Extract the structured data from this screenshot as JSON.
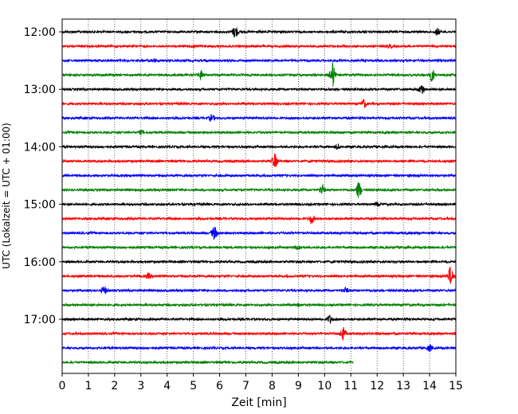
{
  "chart_data": {
    "type": "line",
    "title": "",
    "xlabel": "Zeit  [min]",
    "ylabel": "UTC (Lokalzeit = UTC + 01:00)",
    "xlim": [
      0,
      15
    ],
    "x_ticks": [
      "0",
      "1",
      "2",
      "3",
      "4",
      "5",
      "6",
      "7",
      "8",
      "9",
      "10",
      "11",
      "12",
      "13",
      "14",
      "15"
    ],
    "y_tick_labels": [
      "12:00",
      "13:00",
      "14:00",
      "15:00",
      "16:00",
      "17:00"
    ],
    "grid": "vertical dotted lines at each minute",
    "legend": "none",
    "trace_interval_minutes": 15,
    "colors": [
      "#000000",
      "#ff0000",
      "#0000ff",
      "#008000"
    ],
    "traces": [
      {
        "start": "12:00",
        "color": "#000000",
        "end_min": 15,
        "events": [
          {
            "t": 6.6,
            "amp": 8
          },
          {
            "t": 14.3,
            "amp": 4
          }
        ]
      },
      {
        "start": "12:15",
        "color": "#ff0000",
        "end_min": 15,
        "events": [
          {
            "t": 5.0,
            "amp": 2
          },
          {
            "t": 12.5,
            "amp": 2
          }
        ]
      },
      {
        "start": "12:30",
        "color": "#0000ff",
        "end_min": 15,
        "events": [
          {
            "t": 3.5,
            "amp": 2
          }
        ]
      },
      {
        "start": "12:45",
        "color": "#008000",
        "end_min": 15,
        "events": [
          {
            "t": 5.3,
            "amp": 6
          },
          {
            "t": 10.3,
            "amp": 16
          },
          {
            "t": 14.1,
            "amp": 8
          }
        ]
      },
      {
        "start": "13:00",
        "color": "#000000",
        "end_min": 15,
        "events": [
          {
            "t": 13.7,
            "amp": 6
          }
        ]
      },
      {
        "start": "13:15",
        "color": "#ff0000",
        "end_min": 15,
        "events": [
          {
            "t": 11.5,
            "amp": 5
          }
        ]
      },
      {
        "start": "13:30",
        "color": "#0000ff",
        "end_min": 15,
        "events": [
          {
            "t": 5.7,
            "amp": 4
          }
        ]
      },
      {
        "start": "13:45",
        "color": "#008000",
        "end_min": 15,
        "events": [
          {
            "t": 3.0,
            "amp": 2
          }
        ]
      },
      {
        "start": "14:00",
        "color": "#000000",
        "end_min": 15,
        "events": [
          {
            "t": 10.5,
            "amp": 3
          }
        ]
      },
      {
        "start": "14:15",
        "color": "#ff0000",
        "end_min": 15,
        "events": [
          {
            "t": 8.1,
            "amp": 9
          }
        ]
      },
      {
        "start": "14:30",
        "color": "#0000ff",
        "end_min": 15,
        "events": []
      },
      {
        "start": "14:45",
        "color": "#008000",
        "end_min": 15,
        "events": [
          {
            "t": 9.9,
            "amp": 6
          },
          {
            "t": 11.3,
            "amp": 10
          }
        ]
      },
      {
        "start": "15:00",
        "color": "#000000",
        "end_min": 15,
        "events": [
          {
            "t": 12.0,
            "amp": 2
          }
        ]
      },
      {
        "start": "15:15",
        "color": "#ff0000",
        "end_min": 15,
        "events": [
          {
            "t": 9.5,
            "amp": 6
          }
        ]
      },
      {
        "start": "15:30",
        "color": "#0000ff",
        "end_min": 15,
        "events": [
          {
            "t": 5.8,
            "amp": 8
          }
        ]
      },
      {
        "start": "15:45",
        "color": "#008000",
        "end_min": 15,
        "events": [
          {
            "t": 9.0,
            "amp": 3
          }
        ]
      },
      {
        "start": "16:00",
        "color": "#000000",
        "end_min": 15,
        "events": []
      },
      {
        "start": "16:15",
        "color": "#ff0000",
        "end_min": 15,
        "events": [
          {
            "t": 3.3,
            "amp": 3
          },
          {
            "t": 14.8,
            "amp": 12
          }
        ]
      },
      {
        "start": "16:30",
        "color": "#0000ff",
        "end_min": 15,
        "events": [
          {
            "t": 1.6,
            "amp": 5
          },
          {
            "t": 10.8,
            "amp": 3
          }
        ]
      },
      {
        "start": "16:45",
        "color": "#008000",
        "end_min": 15,
        "events": [
          {
            "t": 9.0,
            "amp": 2
          }
        ]
      },
      {
        "start": "17:00",
        "color": "#000000",
        "end_min": 15,
        "events": [
          {
            "t": 10.2,
            "amp": 5
          }
        ]
      },
      {
        "start": "17:15",
        "color": "#ff0000",
        "end_min": 15,
        "events": [
          {
            "t": 10.7,
            "amp": 8
          }
        ]
      },
      {
        "start": "17:30",
        "color": "#0000ff",
        "end_min": 15,
        "events": [
          {
            "t": 14.0,
            "amp": 4
          }
        ]
      },
      {
        "start": "17:45",
        "color": "#008000",
        "end_min": 11.1,
        "events": []
      }
    ]
  }
}
